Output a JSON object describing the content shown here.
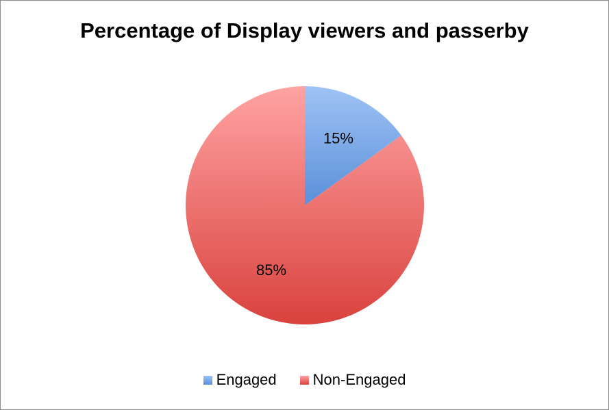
{
  "chart_data": {
    "type": "pie",
    "title": "Percentage of Display viewers and passerby",
    "legend_position": "bottom",
    "slices": [
      {
        "label": "Engaged",
        "value": 15,
        "display": "15%",
        "color": "#5b8fd9",
        "color_light": "#9fc3f5"
      },
      {
        "label": "Non-Engaged",
        "value": 85,
        "display": "85%",
        "color": "#d9423d",
        "color_light": "#ffa3a3"
      }
    ]
  }
}
